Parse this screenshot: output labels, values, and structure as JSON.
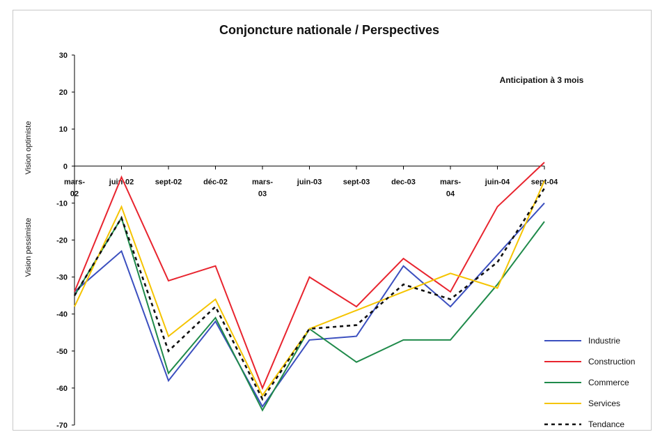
{
  "chart_data": {
    "type": "line",
    "title": "Conjoncture nationale / Perspectives",
    "annotation": "Anticipation à 3 mois",
    "ylabel_top": "Vision optimiste",
    "ylabel_bottom": "Vision pessimiste",
    "ylim": [
      -70,
      30
    ],
    "yticks": [
      30,
      20,
      10,
      0,
      -10,
      -20,
      -30,
      -40,
      -50,
      -60,
      -70
    ],
    "grid": false,
    "legend_position": "bottom-right",
    "categories": [
      [
        "mars-",
        "02"
      ],
      [
        "juin-02"
      ],
      [
        "sept-02"
      ],
      [
        "déc-02"
      ],
      [
        "mars-",
        "03"
      ],
      [
        "juin-03"
      ],
      [
        "sept-03"
      ],
      [
        "dec-03"
      ],
      [
        "mars-",
        "04"
      ],
      [
        "juin-04"
      ],
      [
        "sept-04"
      ]
    ],
    "series": [
      {
        "name": "Industrie",
        "color": "#3b4fbf",
        "dashed": false,
        "values": [
          -34,
          -23,
          -58,
          -42,
          -65,
          -47,
          -46,
          -27,
          -38,
          -24,
          -10
        ]
      },
      {
        "name": "Construction",
        "color": "#e8242e",
        "dashed": false,
        "values": [
          -34,
          -3,
          -31,
          -27,
          -60,
          -30,
          -38,
          -25,
          -34,
          -11,
          1
        ]
      },
      {
        "name": "Commerce",
        "color": "#1f8a4a",
        "dashed": false,
        "values": [
          -35,
          -14,
          -56,
          -41,
          -66,
          -44,
          -53,
          -47,
          -47,
          -32,
          -15
        ]
      },
      {
        "name": "Services",
        "color": "#f5c400",
        "dashed": false,
        "values": [
          -38,
          -11,
          -46,
          -36,
          -62,
          -44,
          -39,
          -34,
          -29,
          -33,
          -4
        ]
      },
      {
        "name": "Tendance",
        "color": "#111111",
        "dashed": true,
        "values": [
          -35,
          -14,
          -50,
          -38,
          -63,
          -44,
          -43,
          -32,
          -36,
          -26,
          -6
        ]
      }
    ]
  }
}
